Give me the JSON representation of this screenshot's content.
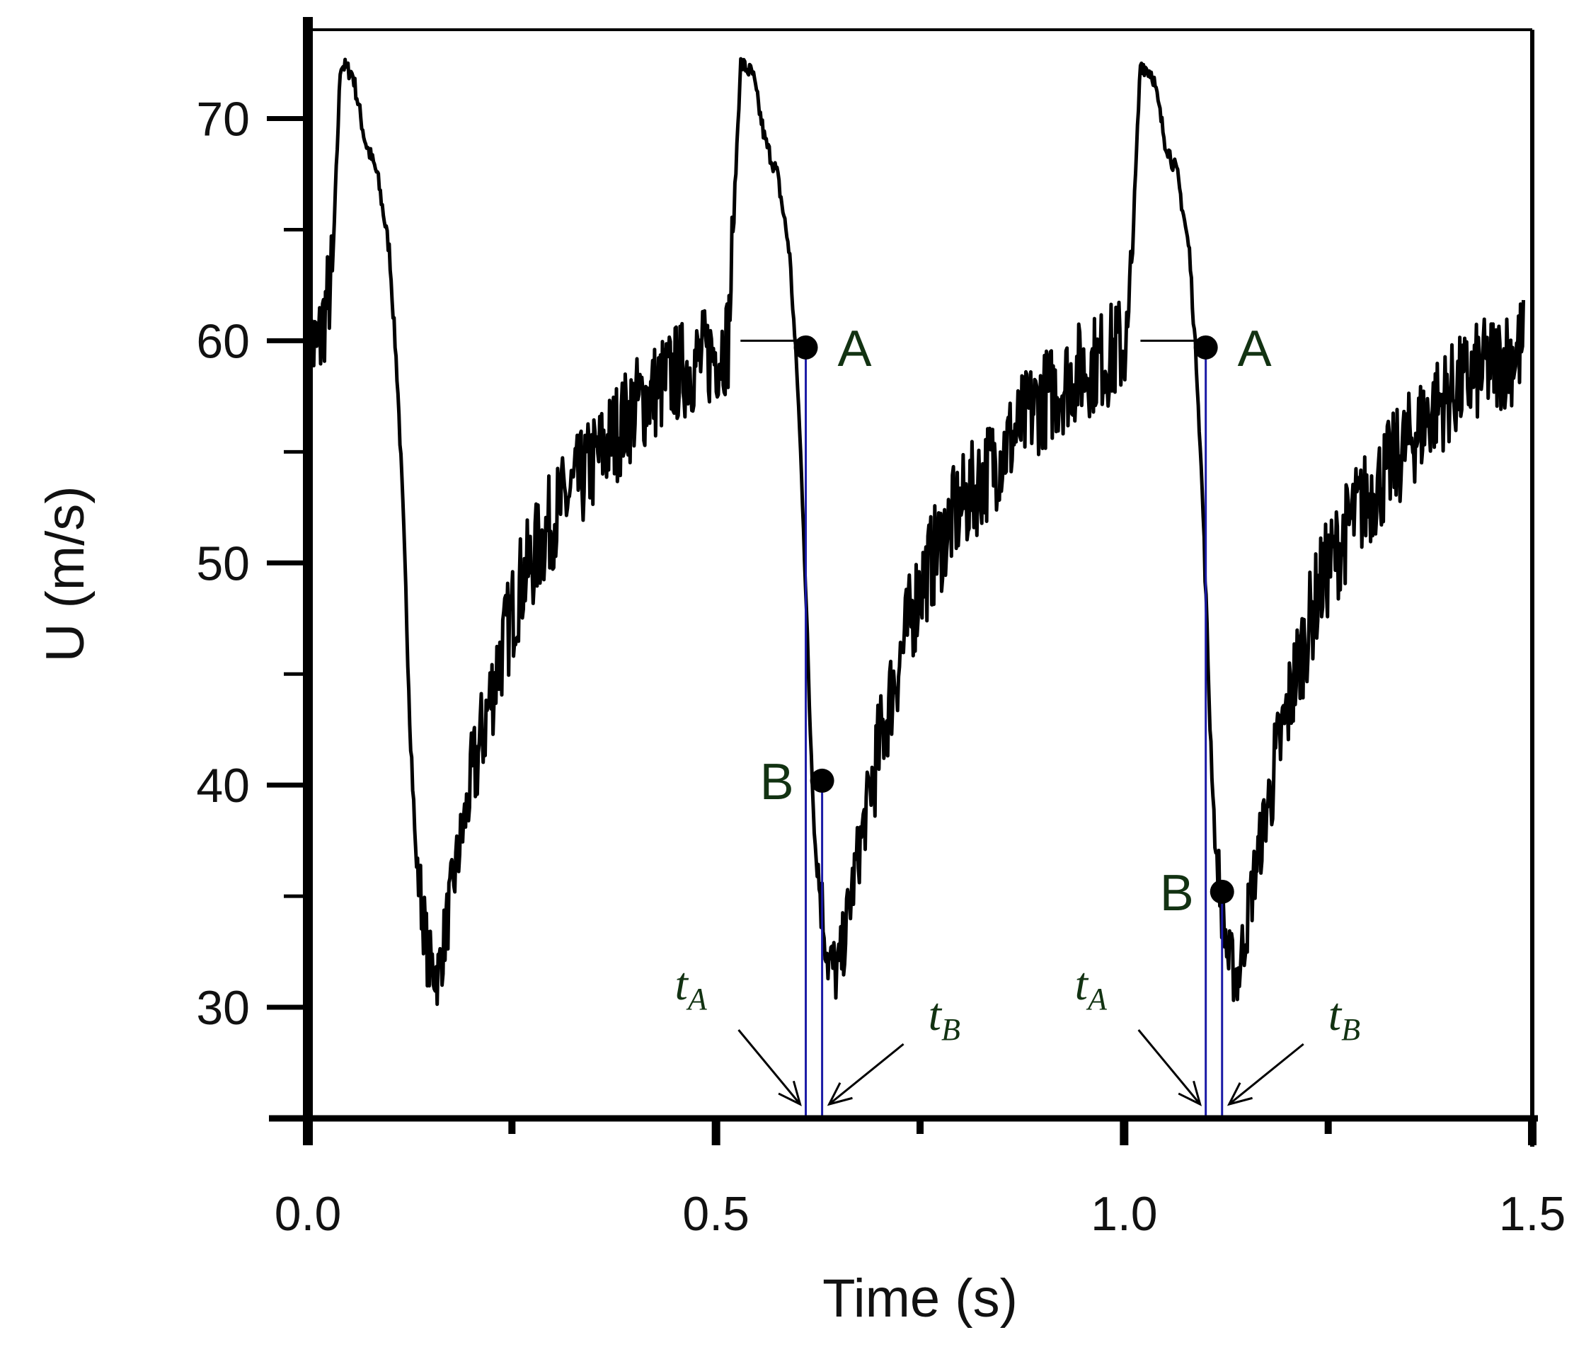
{
  "chart_data": {
    "type": "line",
    "xlabel": "Time (s)",
    "ylabel": "U (m/s)",
    "xlim": [
      0.0,
      1.5
    ],
    "ylim": [
      25.0,
      74.0
    ],
    "x_ticks": [
      0.0,
      0.5,
      1.0,
      1.5
    ],
    "x_tick_labels": [
      "0.0",
      "0.5",
      "1.0",
      "1.5"
    ],
    "x_minor_ticks": [
      0.25,
      0.75,
      1.25
    ],
    "y_ticks": [
      30,
      40,
      50,
      60,
      70
    ],
    "y_tick_labels": [
      "30",
      "40",
      "50",
      "60",
      "70"
    ],
    "y_minor_ticks": [
      35,
      45,
      55,
      65
    ],
    "grid": false,
    "series_color": "#000000",
    "marker_line_color": "#1a1aa6",
    "period": 0.49,
    "trace_keypoints": [
      [
        0.0,
        60.0
      ],
      [
        0.012,
        59.5
      ],
      [
        0.03,
        63.0
      ],
      [
        0.04,
        72.5
      ],
      [
        0.055,
        72.0
      ],
      [
        0.07,
        69.0
      ],
      [
        0.085,
        67.5
      ],
      [
        0.1,
        64.0
      ],
      [
        0.11,
        58.0
      ],
      [
        0.117,
        52.0
      ],
      [
        0.125,
        43.0
      ],
      [
        0.132,
        37.0
      ],
      [
        0.148,
        32.0
      ],
      [
        0.16,
        31.5
      ],
      [
        0.18,
        36.0
      ],
      [
        0.2,
        40.0
      ],
      [
        0.23,
        45.0
      ],
      [
        0.26,
        49.0
      ],
      [
        0.3,
        52.0
      ],
      [
        0.35,
        54.5
      ],
      [
        0.4,
        57.0
      ],
      [
        0.45,
        58.5
      ],
      [
        0.5,
        59.5
      ],
      [
        0.515,
        60.0
      ],
      [
        0.52,
        64.0
      ],
      [
        0.53,
        72.5
      ]
    ],
    "trace_end": 1.49,
    "annotations": [
      {
        "label": "A",
        "x": 0.61,
        "y": 59.7
      },
      {
        "label": "B",
        "x": 0.63,
        "y": 40.2
      },
      {
        "label": "A",
        "x": 1.1,
        "y": 59.7
      },
      {
        "label": "B",
        "x": 1.12,
        "y": 35.2
      }
    ],
    "horizontal_guides": [
      {
        "x1": 0.53,
        "x2": 0.61,
        "y": 60.0
      },
      {
        "x1": 1.02,
        "x2": 1.1,
        "y": 60.0
      }
    ],
    "time_markers": [
      {
        "name": "t",
        "sub": "A",
        "x": 0.61
      },
      {
        "name": "t",
        "sub": "B",
        "x": 0.63
      },
      {
        "name": "t",
        "sub": "A",
        "x": 1.1
      },
      {
        "name": "t",
        "sub": "B",
        "x": 1.12
      }
    ]
  }
}
